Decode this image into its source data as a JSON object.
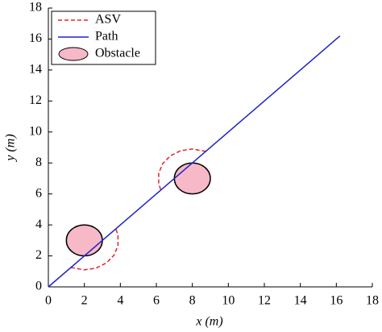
{
  "chart_data": {
    "type": "path-plot",
    "xlabel": "x (m)",
    "ylabel": "y (m)",
    "xlim": [
      0,
      18
    ],
    "ylim": [
      0,
      18
    ],
    "xticks": [
      0,
      2,
      4,
      6,
      8,
      10,
      12,
      14,
      16,
      18
    ],
    "yticks": [
      0,
      2,
      4,
      6,
      8,
      10,
      12,
      14,
      16,
      18
    ],
    "series": [
      {
        "name": "ASV",
        "color": "#e8202a",
        "dashed": true,
        "x": [
          1.25,
          2,
          2.65,
          3.22,
          3.65,
          3.87,
          3.87,
          3.75,
          null,
          8.75,
          8,
          7.35,
          6.78,
          6.35,
          6.13,
          6.13,
          6.25
        ],
        "y": [
          1.25,
          1.1,
          1.21,
          1.54,
          2.05,
          2.67,
          3.33,
          3.75,
          null,
          8.75,
          8.9,
          8.79,
          8.46,
          7.95,
          7.33,
          6.67,
          6.25
        ]
      },
      {
        "name": "Path",
        "color": "#1f24c8",
        "dashed": false,
        "x": [
          0,
          16.2
        ],
        "y": [
          0,
          16.2
        ]
      }
    ],
    "obstacles": {
      "name": "Obstacle",
      "color": "#f7b8c8",
      "x": [
        2,
        8
      ],
      "y": [
        3,
        7
      ],
      "r": [
        1,
        1
      ]
    },
    "legend": "upper left"
  }
}
